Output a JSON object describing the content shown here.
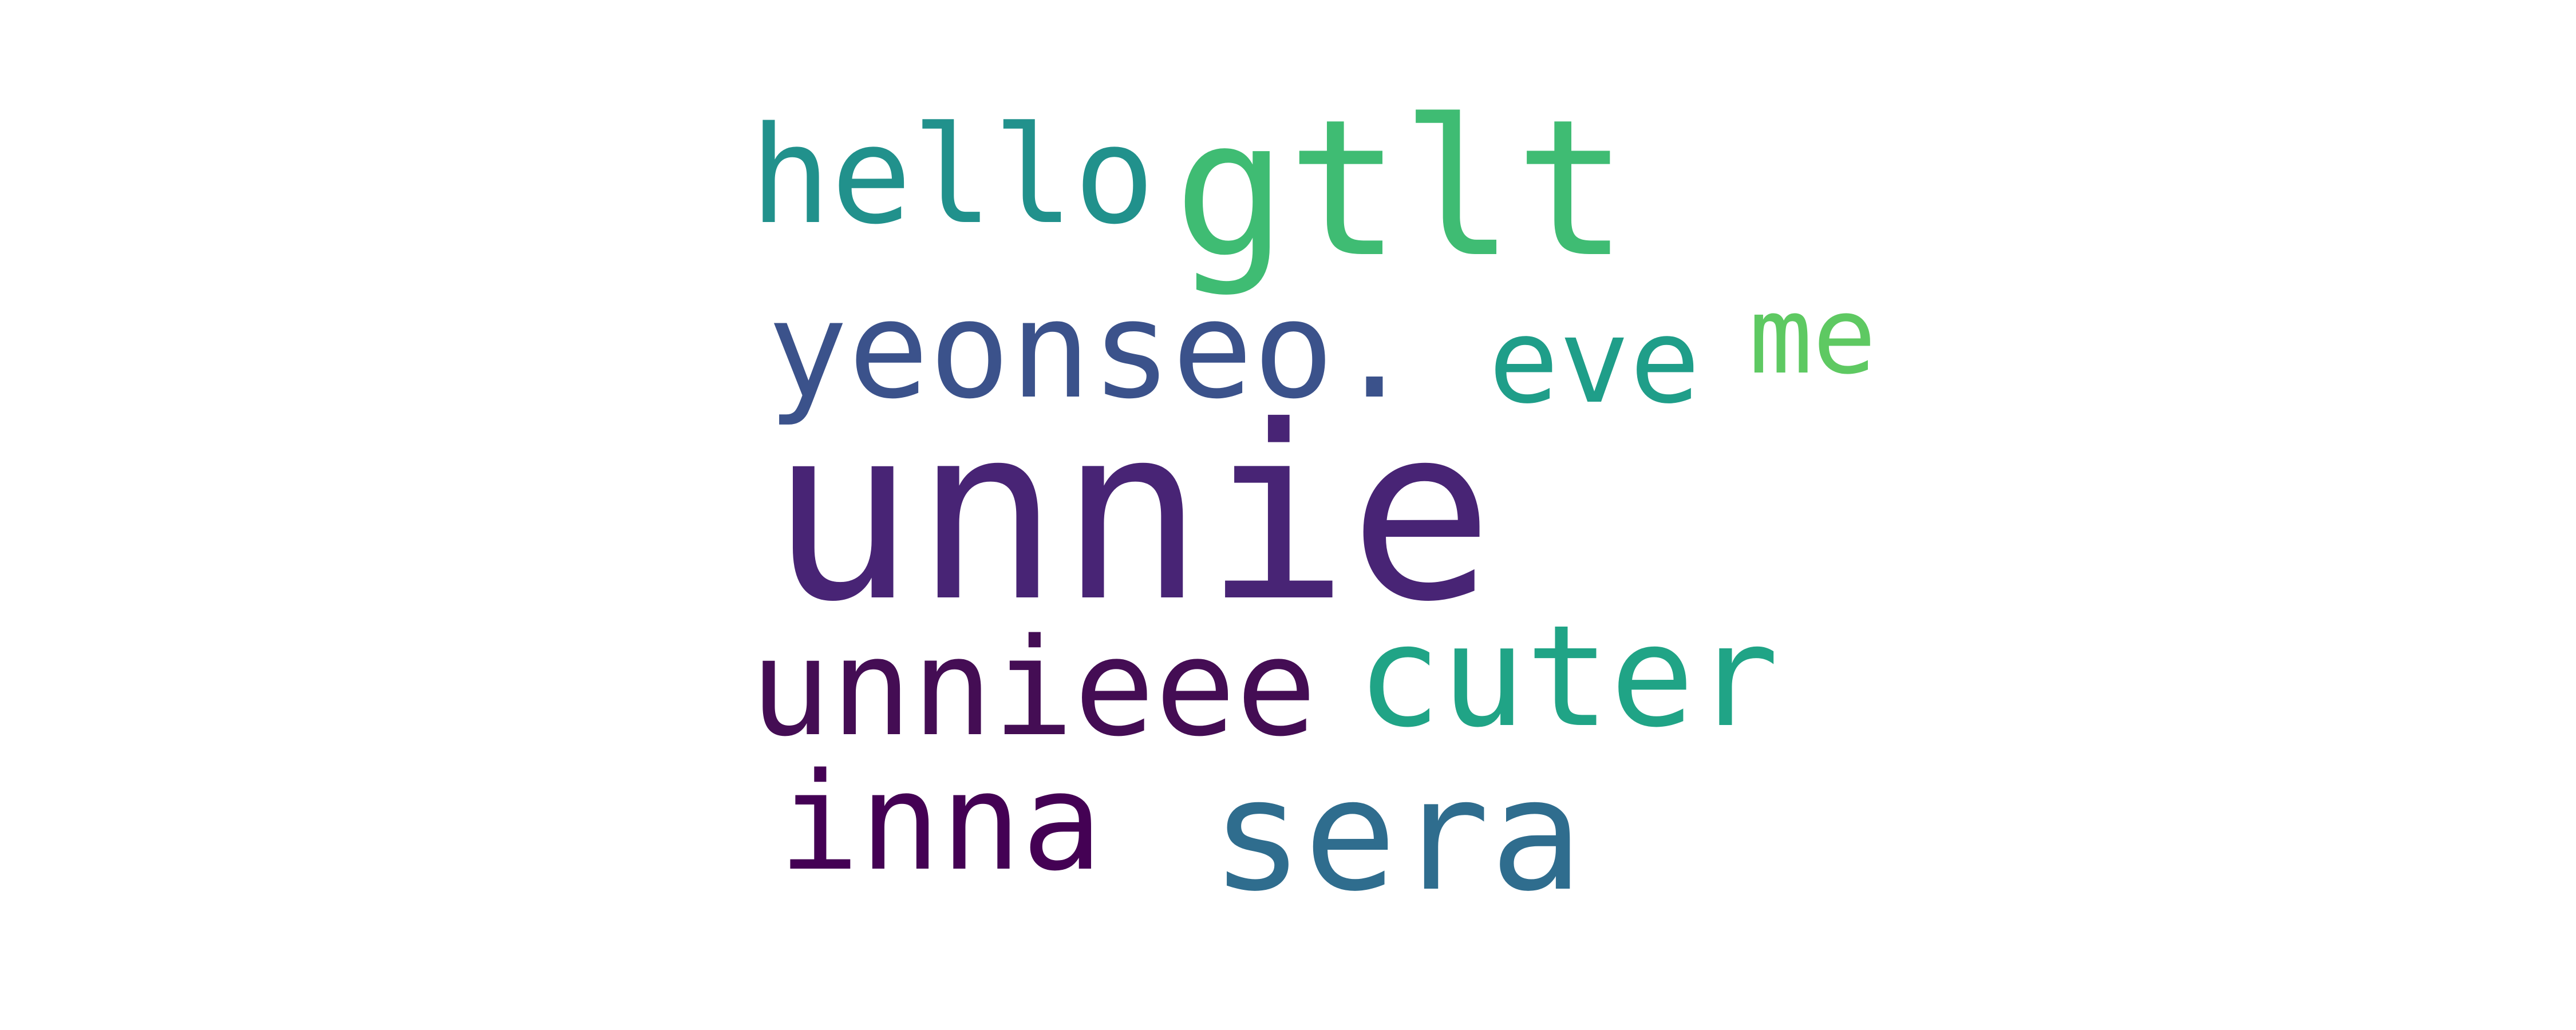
{
  "words": {
    "unnie": {
      "text": "unnie",
      "color": "#482475"
    },
    "gtlt": {
      "text": "gtlt",
      "color": "#3fbc73"
    },
    "sera": {
      "text": "sera",
      "color": "#2f6d8e"
    },
    "cuter": {
      "text": "cuter",
      "color": "#20a486"
    },
    "hello": {
      "text": "hello",
      "color": "#21918c"
    },
    "yeonseo": {
      "text": "yeonseo.",
      "color": "#3b528b"
    },
    "unnieee": {
      "text": "unnieee",
      "color": "#440d54"
    },
    "inna": {
      "text": "inna",
      "color": "#440154"
    },
    "eve": {
      "text": "eve",
      "color": "#1f9e89"
    },
    "me": {
      "text": "me",
      "color": "#5ec962"
    }
  }
}
